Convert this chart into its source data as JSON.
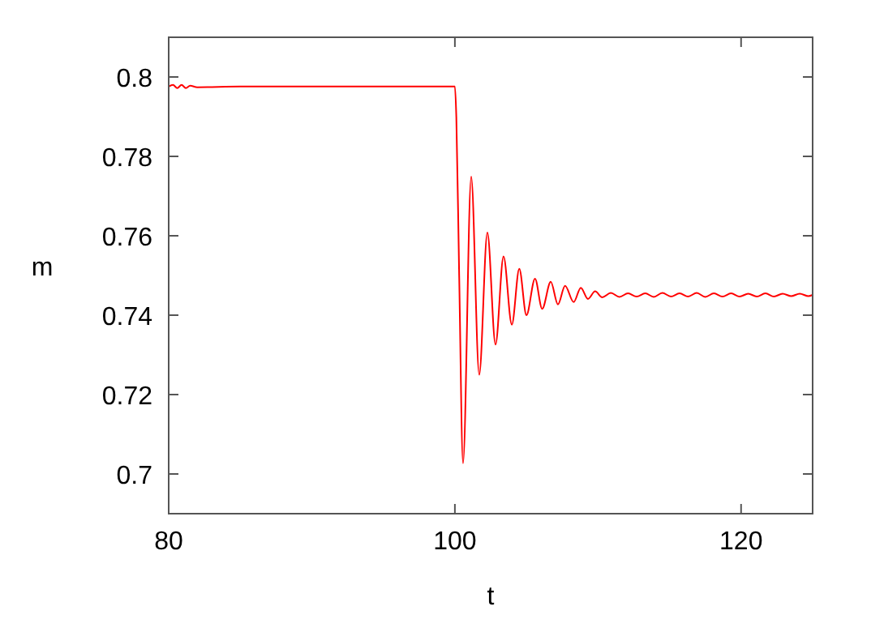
{
  "chart_data": {
    "type": "line",
    "xlabel": "t",
    "ylabel": "m",
    "xlim": [
      80,
      125
    ],
    "xticks": [
      80,
      100,
      120
    ],
    "ylim": [
      0.69,
      0.81
    ],
    "yticks": [
      0.7,
      0.72,
      0.74,
      0.76,
      0.78,
      0.8
    ],
    "grid": false,
    "marker": "none",
    "line_style": "solid",
    "series": [
      {
        "color": "#ff0000",
        "x": [
          80,
          80.3,
          80.6,
          80.9,
          81.2,
          81.5,
          82,
          85,
          90,
          95,
          99.9,
          100,
          100.1,
          100.3,
          100.57,
          101.14,
          101.7,
          102.27,
          102.84,
          103.4,
          103.98,
          104.5,
          105,
          105.6,
          106.1,
          106.7,
          107.2,
          107.7,
          108.3,
          108.8,
          109.3,
          109.8,
          110.3,
          110.9,
          111.5,
          112.1,
          112.7,
          113.3,
          113.9,
          114.5,
          115.1,
          115.7,
          116.3,
          116.9,
          117.5,
          118.1,
          118.7,
          119.3,
          119.9,
          120.5,
          121.1,
          121.7,
          122.3,
          122.9,
          123.5,
          124.1,
          124.7,
          125
        ],
        "values": [
          0.7976,
          0.798,
          0.7972,
          0.798,
          0.7972,
          0.7978,
          0.7974,
          0.7976,
          0.7976,
          0.7976,
          0.7976,
          0.7976,
          0.79,
          0.75,
          0.7027,
          0.7749,
          0.725,
          0.7608,
          0.7326,
          0.7548,
          0.7376,
          0.7517,
          0.74,
          0.7492,
          0.7416,
          0.7484,
          0.7427,
          0.7474,
          0.7433,
          0.7469,
          0.7441,
          0.746,
          0.7445,
          0.7456,
          0.7446,
          0.7455,
          0.7447,
          0.7455,
          0.7446,
          0.7456,
          0.7447,
          0.7455,
          0.7447,
          0.7456,
          0.7446,
          0.7455,
          0.7447,
          0.7455,
          0.7447,
          0.7454,
          0.7447,
          0.7455,
          0.7447,
          0.7454,
          0.7448,
          0.7454,
          0.7448,
          0.7451
        ]
      }
    ]
  }
}
